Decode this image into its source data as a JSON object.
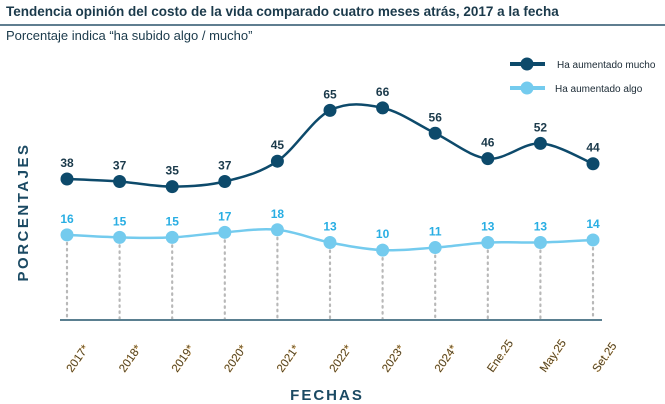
{
  "title": "Tendencia opinión del costo de la vida comparado cuatro meses atrás, 2017 a la fecha",
  "subtitle": "Porcentaje indica “ha subido algo / mucho”",
  "chart_data": {
    "type": "line",
    "xlabel": "FECHAS",
    "ylabel": "PORCENTAJES",
    "categories": [
      "2017*",
      "2018*",
      "2019*",
      "2020*",
      "2021*",
      "2022*",
      "2023*",
      "2024*",
      "Ene.25",
      "May.25",
      "Set.25"
    ],
    "series": [
      {
        "name": "Ha aumentado mucho",
        "color": "#0d4a6b",
        "label_color": "#1b3a4b",
        "values": [
          38,
          37,
          35,
          37,
          45,
          65,
          66,
          56,
          46,
          52,
          44
        ]
      },
      {
        "name": "Ha aumentado algo",
        "color": "#74cbee",
        "label_color": "#29aee3",
        "values": [
          16,
          15,
          15,
          17,
          18,
          13,
          10,
          11,
          13,
          13,
          14
        ]
      }
    ],
    "legend_position": "top-right",
    "grid": false
  }
}
